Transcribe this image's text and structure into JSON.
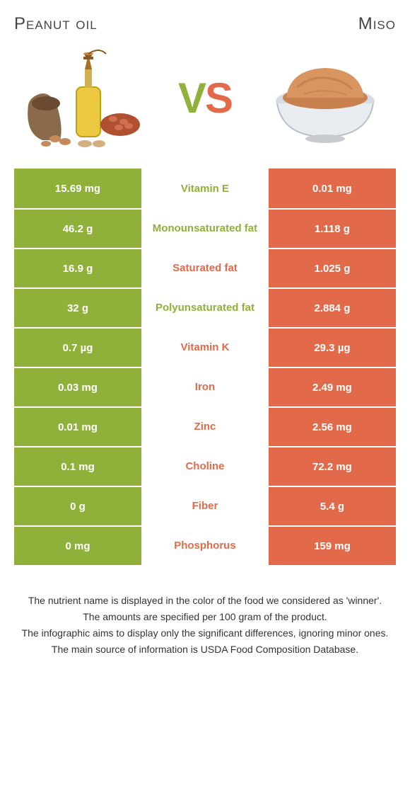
{
  "titles": {
    "left": "Peanut oil",
    "right": "Miso",
    "vs_v": "V",
    "vs_s": "S"
  },
  "colors": {
    "left_bg": "#8fb13a",
    "right_bg": "#e26a4a",
    "left_text": "#ffffff",
    "right_text": "#ffffff",
    "mid_bg": "#ffffff"
  },
  "rows": [
    {
      "left": "15.69 mg",
      "mid": "Vitamin E",
      "right": "0.01 mg",
      "winner": "left"
    },
    {
      "left": "46.2 g",
      "mid": "Monounsaturated fat",
      "right": "1.118 g",
      "winner": "left"
    },
    {
      "left": "16.9 g",
      "mid": "Saturated fat",
      "right": "1.025 g",
      "winner": "right"
    },
    {
      "left": "32 g",
      "mid": "Polyunsaturated fat",
      "right": "2.884 g",
      "winner": "left"
    },
    {
      "left": "0.7 µg",
      "mid": "Vitamin K",
      "right": "29.3 µg",
      "winner": "right"
    },
    {
      "left": "0.03 mg",
      "mid": "Iron",
      "right": "2.49 mg",
      "winner": "right"
    },
    {
      "left": "0.01 mg",
      "mid": "Zinc",
      "right": "2.56 mg",
      "winner": "right"
    },
    {
      "left": "0.1 mg",
      "mid": "Choline",
      "right": "72.2 mg",
      "winner": "right"
    },
    {
      "left": "0 g",
      "mid": "Fiber",
      "right": "5.4 g",
      "winner": "right"
    },
    {
      "left": "0 mg",
      "mid": "Phosphorus",
      "right": "159 mg",
      "winner": "right"
    }
  ],
  "notes": [
    "The nutrient name is displayed in the color of the food we considered as 'winner'.",
    "The amounts are specified per 100 gram of the product.",
    "The infographic aims to display only the significant differences, ignoring minor ones.",
    "The main source of information is USDA Food Composition Database."
  ]
}
